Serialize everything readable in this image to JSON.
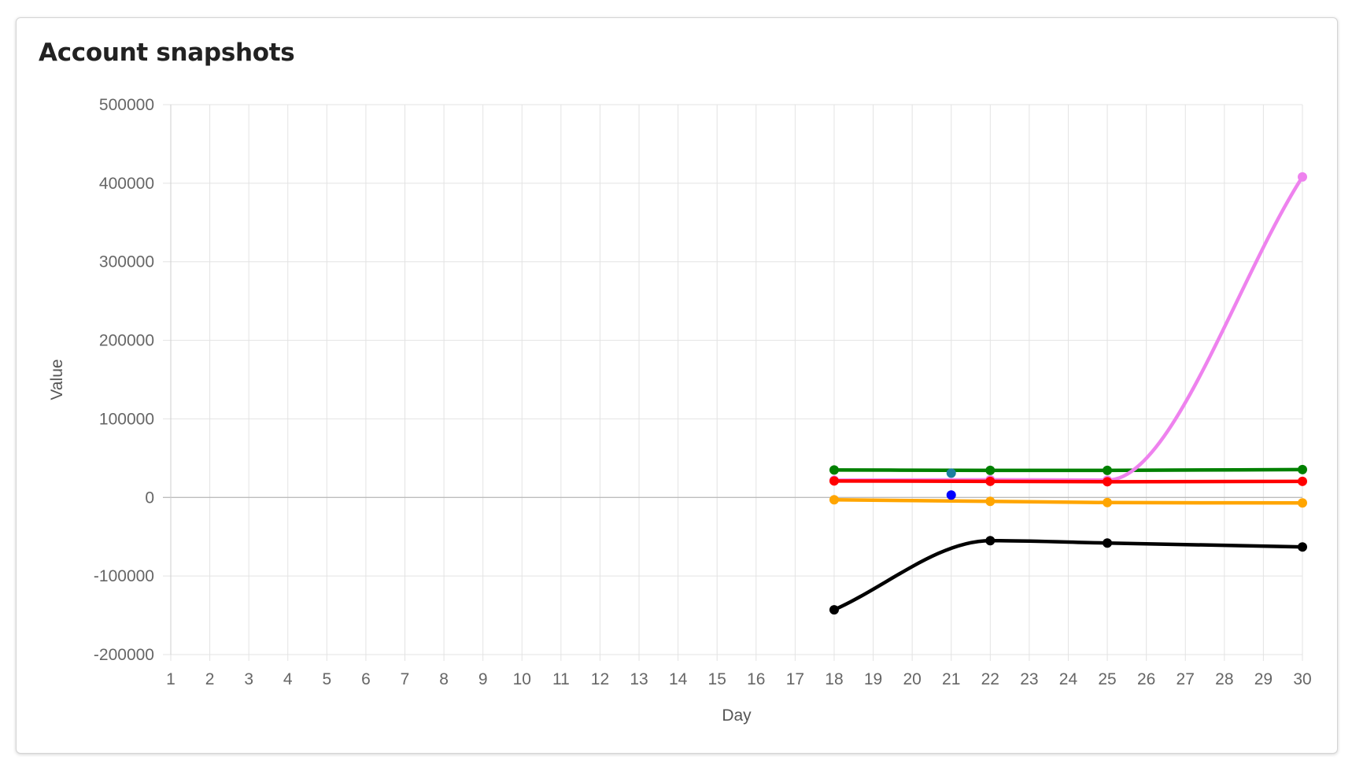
{
  "card": {
    "title": "Account snapshots"
  },
  "chart_data": {
    "type": "line",
    "title": "Account snapshots",
    "xlabel": "Day",
    "ylabel": "Value",
    "x": [
      1,
      2,
      3,
      4,
      5,
      6,
      7,
      8,
      9,
      10,
      11,
      12,
      13,
      14,
      15,
      16,
      17,
      18,
      19,
      20,
      21,
      22,
      23,
      24,
      25,
      26,
      27,
      28,
      29,
      30
    ],
    "xlim": [
      1,
      30
    ],
    "ylim": [
      -200000,
      500000
    ],
    "yticks": [
      500000,
      400000,
      300000,
      200000,
      100000,
      0,
      -100000,
      -200000
    ],
    "grid": true,
    "legend": "none",
    "series": [
      {
        "color": "#008000",
        "points": [
          [
            18,
            35000
          ],
          [
            22,
            34500
          ],
          [
            25,
            34500
          ],
          [
            30,
            35500
          ]
        ]
      },
      {
        "color": "#ee82ee",
        "points": [
          [
            18,
            22000
          ],
          [
            22,
            22500
          ],
          [
            25,
            22000
          ],
          [
            30,
            408000
          ]
        ]
      },
      {
        "color": "#ff0000",
        "points": [
          [
            18,
            21000
          ],
          [
            22,
            20500
          ],
          [
            25,
            20000
          ],
          [
            30,
            20500
          ]
        ]
      },
      {
        "color": "#ffa500",
        "points": [
          [
            18,
            -3000
          ],
          [
            22,
            -5000
          ],
          [
            25,
            -6500
          ],
          [
            30,
            -7000
          ]
        ]
      },
      {
        "color": "#000000",
        "points": [
          [
            18,
            -143000
          ],
          [
            22,
            -55000
          ],
          [
            25,
            -58000
          ],
          [
            30,
            -63000
          ]
        ]
      },
      {
        "color": "#1a7f9f",
        "points": [
          [
            21,
            31000
          ]
        ]
      },
      {
        "color": "#0000ff",
        "points": [
          [
            21,
            3000
          ]
        ]
      }
    ]
  }
}
